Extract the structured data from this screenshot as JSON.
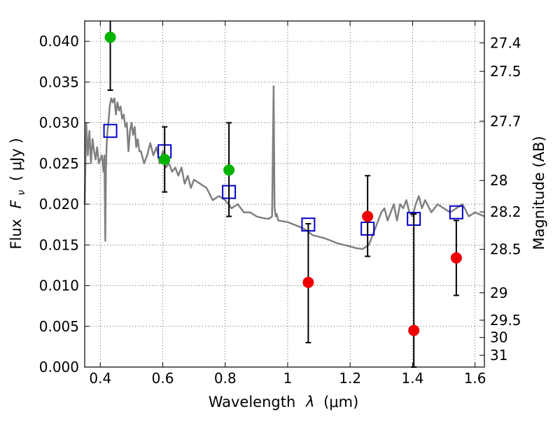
{
  "chart_data": {
    "type": "scatter",
    "title": "",
    "xlabel_text": "Wavelength",
    "xlabel_symbol": "λ",
    "xlabel_unit": "(μm)",
    "ylabel_text": "Flux",
    "ylabel_symbol": "F",
    "ylabel_sub": "ν",
    "ylabel_unit": "( μJy )",
    "y2label": "Magnitude (AB)",
    "xlim": [
      0.35,
      1.63
    ],
    "ylim": [
      0.0,
      0.0425
    ],
    "grid": true,
    "xticks": [
      0.4,
      0.6,
      0.8,
      1.0,
      1.2,
      1.4,
      1.6
    ],
    "xtick_labels": [
      "0.4",
      "0.6",
      "0.8",
      "1",
      "1.2",
      "1.4",
      "1.6"
    ],
    "yticks": [
      0.0,
      0.005,
      0.01,
      0.015,
      0.02,
      0.025,
      0.03,
      0.035,
      0.04
    ],
    "ytick_labels": [
      "0.000",
      "0.005",
      "0.010",
      "0.015",
      "0.020",
      "0.025",
      "0.030",
      "0.035",
      "0.040"
    ],
    "y2ticks": [
      {
        "label": "27.4",
        "mag": 27.4
      },
      {
        "label": "27.5",
        "mag": 27.5
      },
      {
        "label": "27.7",
        "mag": 27.7
      },
      {
        "label": "28",
        "mag": 28.0
      },
      {
        "label": "28.2",
        "mag": 28.2
      },
      {
        "label": "28.5",
        "mag": 28.5
      },
      {
        "label": "29",
        "mag": 29.0
      },
      {
        "label": "29.5",
        "mag": 29.5
      },
      {
        "label": "30",
        "mag": 30.0
      },
      {
        "label": "31",
        "mag": 31.0
      }
    ],
    "series": [
      {
        "kind": "line",
        "color": "#808080",
        "x": [
          0.35,
          0.355,
          0.36,
          0.365,
          0.37,
          0.375,
          0.38,
          0.385,
          0.39,
          0.395,
          0.4,
          0.405,
          0.41,
          0.413,
          0.416,
          0.418,
          0.42,
          0.423,
          0.426,
          0.43,
          0.435,
          0.44,
          0.445,
          0.45,
          0.455,
          0.46,
          0.465,
          0.47,
          0.475,
          0.48,
          0.485,
          0.49,
          0.495,
          0.5,
          0.505,
          0.51,
          0.515,
          0.52,
          0.525,
          0.53,
          0.54,
          0.55,
          0.56,
          0.57,
          0.58,
          0.59,
          0.6,
          0.61,
          0.62,
          0.63,
          0.64,
          0.65,
          0.66,
          0.67,
          0.68,
          0.69,
          0.7,
          0.72,
          0.74,
          0.76,
          0.78,
          0.8,
          0.82,
          0.84,
          0.86,
          0.88,
          0.9,
          0.92,
          0.94,
          0.95,
          0.955,
          0.958,
          0.962,
          0.965,
          0.97,
          1.0,
          1.02,
          1.04,
          1.06,
          1.08,
          1.1,
          1.12,
          1.14,
          1.16,
          1.18,
          1.2,
          1.22,
          1.24,
          1.26,
          1.28,
          1.3,
          1.31,
          1.32,
          1.33,
          1.34,
          1.35,
          1.36,
          1.37,
          1.38,
          1.39,
          1.4,
          1.41,
          1.42,
          1.43,
          1.44,
          1.46,
          1.48,
          1.5,
          1.52,
          1.54,
          1.56,
          1.58,
          1.6,
          1.63
        ],
        "y": [
          0.02,
          0.03,
          0.026,
          0.029,
          0.025,
          0.028,
          0.0265,
          0.0255,
          0.027,
          0.025,
          0.0255,
          0.026,
          0.024,
          0.026,
          0.0155,
          0.024,
          0.027,
          0.029,
          0.03,
          0.032,
          0.033,
          0.0325,
          0.033,
          0.031,
          0.0325,
          0.0315,
          0.032,
          0.0305,
          0.031,
          0.0295,
          0.03,
          0.0265,
          0.029,
          0.03,
          0.0285,
          0.0295,
          0.027,
          0.028,
          0.0265,
          0.0265,
          0.025,
          0.026,
          0.0275,
          0.026,
          0.027,
          0.025,
          0.0265,
          0.0245,
          0.025,
          0.024,
          0.0245,
          0.0235,
          0.0245,
          0.0225,
          0.0235,
          0.022,
          0.023,
          0.0225,
          0.022,
          0.0205,
          0.021,
          0.0205,
          0.0195,
          0.02,
          0.019,
          0.019,
          0.0185,
          0.0183,
          0.0182,
          0.0185,
          0.0345,
          0.0195,
          0.0185,
          0.0188,
          0.018,
          0.0178,
          0.0175,
          0.0172,
          0.0168,
          0.0162,
          0.016,
          0.0158,
          0.0155,
          0.0152,
          0.015,
          0.0148,
          0.0146,
          0.0145,
          0.015,
          0.017,
          0.019,
          0.0195,
          0.018,
          0.019,
          0.02,
          0.018,
          0.02,
          0.0195,
          0.0205,
          0.019,
          0.0185,
          0.02,
          0.021,
          0.0195,
          0.0205,
          0.019,
          0.02,
          0.0195,
          0.019,
          0.0195,
          0.02,
          0.0185,
          0.019,
          0.0185
        ]
      },
      {
        "kind": "open-square",
        "color": "#0000cc",
        "x": [
          0.432,
          0.606,
          0.812,
          1.066,
          1.256,
          1.404,
          1.54
        ],
        "y": [
          0.029,
          0.0265,
          0.0215,
          0.0175,
          0.017,
          0.0182,
          0.019
        ]
      },
      {
        "kind": "point-errorbar",
        "color": "#00b400",
        "x": [
          0.432,
          0.606,
          0.812
        ],
        "y": [
          0.0405,
          0.0255,
          0.0242
        ],
        "yerr_low": [
          0.034,
          0.0215,
          0.0185
        ],
        "yerr_high": [
          0.043,
          0.0295,
          0.03
        ]
      },
      {
        "kind": "point-errorbar",
        "color": "#ee0000",
        "x": [
          1.066,
          1.256,
          1.404,
          1.54
        ],
        "y": [
          0.0104,
          0.0185,
          0.0045,
          0.0134
        ],
        "yerr_low": [
          0.003,
          0.0136,
          0.0,
          0.0088
        ],
        "yerr_high": [
          0.0176,
          0.0235,
          0.0188,
          0.018
        ]
      }
    ]
  }
}
